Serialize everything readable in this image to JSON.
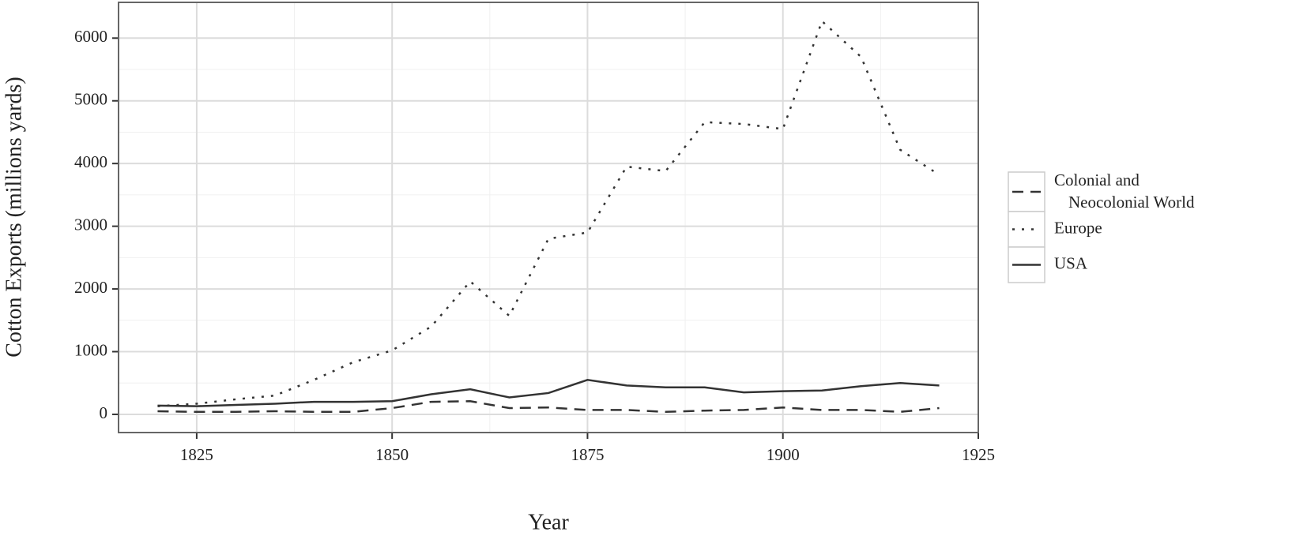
{
  "chart_data": {
    "type": "line",
    "x_label": "Year",
    "y_label": "Cotton Exports (millions yards)",
    "x": [
      1820,
      1825,
      1830,
      1835,
      1840,
      1845,
      1850,
      1855,
      1860,
      1865,
      1870,
      1875,
      1880,
      1885,
      1890,
      1895,
      1900,
      1905,
      1910,
      1915,
      1920
    ],
    "series": [
      {
        "name": "Colonial and\nNeocolonial World",
        "color": "#333333",
        "linetype": "dashed",
        "values": [
          50,
          40,
          40,
          50,
          40,
          40,
          100,
          200,
          210,
          100,
          110,
          70,
          70,
          40,
          60,
          70,
          110,
          70,
          70,
          40,
          100
        ]
      },
      {
        "name": "Europe",
        "color": "#333333",
        "linetype": "dotted",
        "values": [
          130,
          170,
          240,
          300,
          550,
          830,
          1020,
          1400,
          2120,
          1570,
          2800,
          2900,
          3950,
          3880,
          4660,
          4630,
          4550,
          6270,
          5700,
          4220,
          3820
        ]
      },
      {
        "name": "USA",
        "color": "#333333",
        "linetype": "solid",
        "values": [
          140,
          130,
          150,
          170,
          200,
          200,
          210,
          320,
          400,
          270,
          340,
          550,
          460,
          430,
          430,
          350,
          370,
          380,
          450,
          500,
          460
        ]
      }
    ],
    "xlim": [
      1815,
      1925
    ],
    "xticks": [
      1825,
      1850,
      1875,
      1900,
      1925
    ],
    "ylim": [
      -290,
      6570
    ],
    "yticks": [
      0,
      1000,
      2000,
      3000,
      4000,
      5000,
      6000
    ],
    "grid": true,
    "minor_grid": true,
    "legend": "right"
  }
}
